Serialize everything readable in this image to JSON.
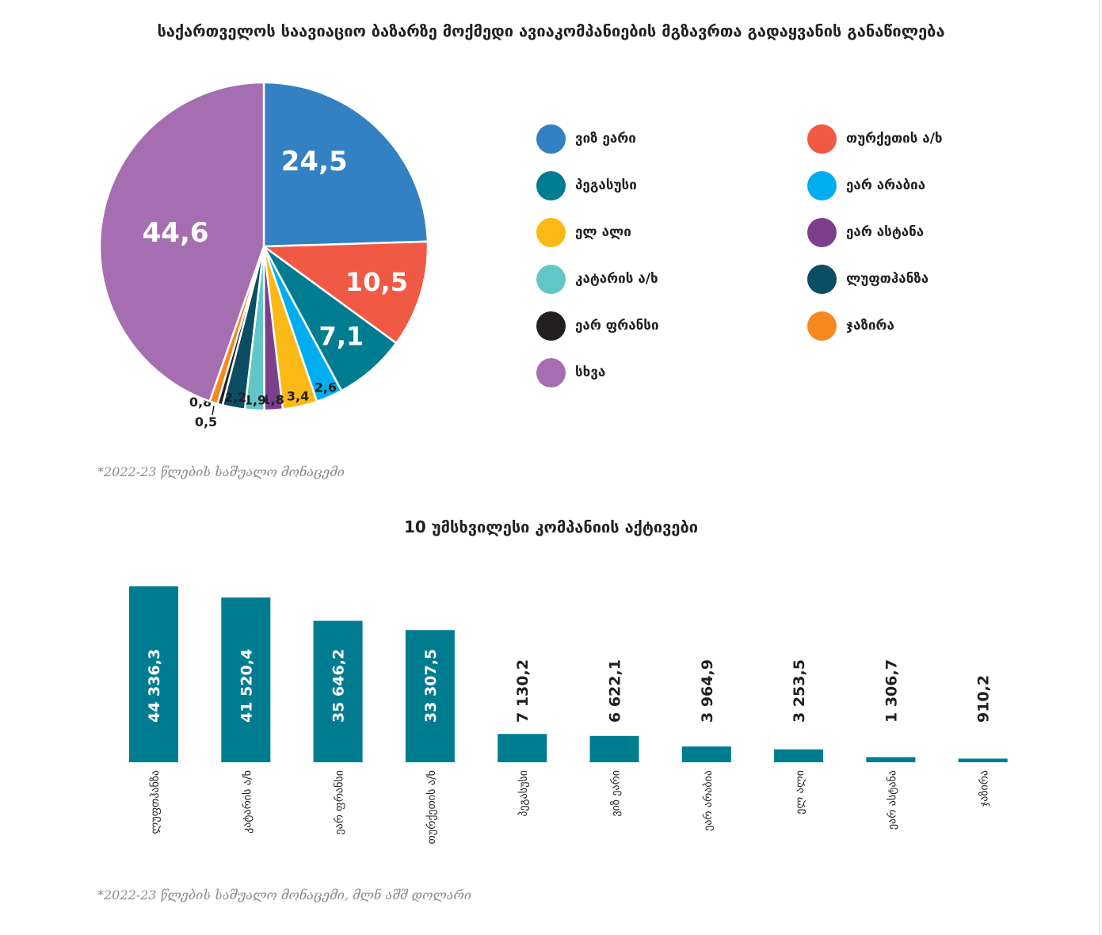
{
  "pie_title": "საქართველოს საავიაციო ბაზარზე მოქმედი ავიაკომპანიების მგზავრთა გადაყვანის განაწილება",
  "pie_note": "*2022-23 წლების საშუალო მონაცემი",
  "bar_title": "10 უმსხვილესი კომპანიის აქტივები",
  "bar_note": "*2022-23 წლების საშუალო მონაცემი, მლნ აშშ დოლარი",
  "legend": [
    {
      "label": "ვიზ ეარი",
      "color": "#3380c2"
    },
    {
      "label": "თურქეთის ა/ხ",
      "color": "#f05a44"
    },
    {
      "label": "პეგასუსი",
      "color": "#007c91"
    },
    {
      "label": "ეარ არაბია",
      "color": "#00aeef"
    },
    {
      "label": "ელ ალი",
      "color": "#fbb917"
    },
    {
      "label": "ეარ ასტანა",
      "color": "#7b3f8c"
    },
    {
      "label": "კატარის ა/ხ",
      "color": "#62c6c7"
    },
    {
      "label": "ლუფთჰანზა",
      "color": "#0b4d62"
    },
    {
      "label": "ეარ ფრანსი",
      "color": "#231f20"
    },
    {
      "label": "ჯაზირა",
      "color": "#f5891f"
    },
    {
      "label": "სხვა",
      "color": "#a56eb0"
    }
  ],
  "chart_data": [
    {
      "type": "pie",
      "title": "საქართველოს საავიაციო ბაზარზე მოქმედი ავიაკომპანიების მგზავრთა გადაყვანის განაწილება",
      "slices": [
        {
          "name": "ვიზ ეარი",
          "value": 24.5,
          "label": "24,5",
          "color": "#3380c2"
        },
        {
          "name": "თურქეთის ა/ხ",
          "value": 10.5,
          "label": "10,5",
          "color": "#f05a44"
        },
        {
          "name": "პეგასუსი",
          "value": 7.1,
          "label": "7,1",
          "color": "#007c91"
        },
        {
          "name": "ეარ არაბია",
          "value": 2.6,
          "label": "2,6",
          "color": "#00aeef"
        },
        {
          "name": "ელ ალი",
          "value": 3.4,
          "label": "3,4",
          "color": "#fbb917"
        },
        {
          "name": "ეარ ასტანა",
          "value": 1.8,
          "label": "1,8",
          "color": "#7b3f8c"
        },
        {
          "name": "კატარის ა/ხ",
          "value": 1.9,
          "label": "1,9",
          "color": "#62c6c7"
        },
        {
          "name": "ლუფთჰანზა",
          "value": 2.2,
          "label": "2,2",
          "color": "#0b4d62"
        },
        {
          "name": "ეარ ფრანსი",
          "value": 0.5,
          "label": "0,5",
          "color": "#231f20"
        },
        {
          "name": "ჯაზირა",
          "value": 0.8,
          "label": "0,8",
          "color": "#f5891f"
        },
        {
          "name": "სხვა",
          "value": 44.6,
          "label": "44,6",
          "color": "#a56eb0"
        }
      ],
      "legend_position": "right"
    },
    {
      "type": "bar",
      "title": "10 უმსხვილესი კომპანიის აქტივები",
      "categories": [
        "ლუფთჰანზა",
        "კატარის ა/ხ",
        "ეარ ფრანსი",
        "თურქეთის ა/ხ",
        "პეგასუსი",
        "ვიზ ეარი",
        "ეარ არაბია",
        "ელ ალი",
        "ეარ ასტანა",
        "ჯაზირა"
      ],
      "values": [
        44336.3,
        41520.4,
        35646.2,
        33307.5,
        7130.2,
        6622.1,
        3964.9,
        3253.5,
        1306.7,
        910.2
      ],
      "value_labels": [
        "44 336,3",
        "41 520,4",
        "35 646,2",
        "33 307,5",
        "7 130,2",
        "6 622,1",
        "3 964,9",
        "3 253,5",
        "1 306,7",
        "910,2"
      ],
      "bar_color": "#007c91",
      "ylim": [
        0,
        44336.3
      ],
      "grid": false
    }
  ]
}
